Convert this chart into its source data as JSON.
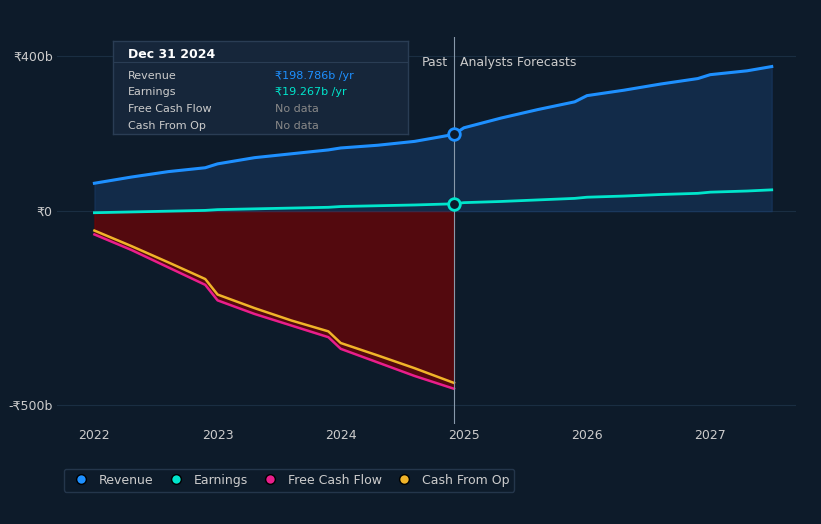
{
  "background_color": "#0d1b2a",
  "plot_bg_color": "#0d1b2a",
  "xlim": [
    2021.7,
    2027.7
  ],
  "ylim": [
    -550,
    450
  ],
  "yticks": [
    -500,
    0,
    400
  ],
  "ytick_labels": [
    "-₹500b",
    "₹0",
    "₹400b"
  ],
  "xticks": [
    2022,
    2023,
    2024,
    2025,
    2026,
    2027
  ],
  "divider_x": 2024.92,
  "past_label": "Past",
  "forecast_label": "Analysts Forecasts",
  "revenue": {
    "x": [
      2022.0,
      2022.3,
      2022.6,
      2022.9,
      2023.0,
      2023.3,
      2023.6,
      2023.9,
      2024.0,
      2024.3,
      2024.6,
      2024.92,
      2025.0,
      2025.3,
      2025.6,
      2025.9,
      2026.0,
      2026.3,
      2026.6,
      2026.9,
      2027.0,
      2027.3,
      2027.5
    ],
    "y": [
      72,
      88,
      102,
      112,
      122,
      138,
      148,
      158,
      163,
      170,
      180,
      198,
      215,
      240,
      262,
      282,
      298,
      312,
      328,
      342,
      352,
      362,
      373
    ],
    "color": "#1e90ff",
    "linewidth": 2.2
  },
  "earnings": {
    "x": [
      2022.0,
      2022.3,
      2022.6,
      2022.9,
      2023.0,
      2023.3,
      2023.6,
      2023.9,
      2024.0,
      2024.3,
      2024.6,
      2024.92,
      2025.0,
      2025.3,
      2025.6,
      2025.9,
      2026.0,
      2026.3,
      2026.6,
      2026.9,
      2027.0,
      2027.3,
      2027.5
    ],
    "y": [
      -4,
      -2,
      0,
      2,
      4,
      6,
      8,
      10,
      12,
      14,
      16,
      19,
      22,
      25,
      29,
      33,
      36,
      39,
      43,
      46,
      49,
      52,
      55
    ],
    "color": "#00e5cc",
    "linewidth": 2.0
  },
  "free_cash_flow": {
    "x": [
      2022.0,
      2022.3,
      2022.6,
      2022.9,
      2023.0,
      2023.3,
      2023.6,
      2023.9,
      2024.0,
      2024.3,
      2024.6,
      2024.92
    ],
    "y": [
      -60,
      -100,
      -145,
      -190,
      -230,
      -265,
      -295,
      -325,
      -355,
      -390,
      -425,
      -458
    ],
    "color": "#e91e8c",
    "linewidth": 1.8
  },
  "cash_from_op": {
    "x": [
      2022.0,
      2022.3,
      2022.6,
      2022.9,
      2023.0,
      2023.3,
      2023.6,
      2023.9,
      2024.0,
      2024.3,
      2024.6,
      2024.92
    ],
    "y": [
      -50,
      -90,
      -132,
      -175,
      -215,
      -250,
      -282,
      -310,
      -340,
      -372,
      -405,
      -443
    ],
    "color": "#f0b429",
    "linewidth": 1.8
  },
  "fill_color_negative": "#7a0000",
  "fill_alpha_negative": 0.65,
  "revenue_fill_color": "#1a3f6f",
  "revenue_fill_alpha": 0.45,
  "dot_color_revenue": "#1e90ff",
  "dot_color_earnings": "#00e5cc",
  "dot_size": 70,
  "tooltip": {
    "title": "Dec 31 2024",
    "rows": [
      {
        "label": "Revenue",
        "value": "₹198.786b /yr",
        "value_color": "#1e90ff"
      },
      {
        "label": "Earnings",
        "value": "₹19.267b /yr",
        "value_color": "#00e5cc"
      },
      {
        "label": "Free Cash Flow",
        "value": "No data",
        "value_color": "#888888"
      },
      {
        "label": "Cash From Op",
        "value": "No data",
        "value_color": "#888888"
      }
    ],
    "bg_color": "#16263a",
    "border_color": "#2a3d54",
    "title_color": "#ffffff"
  },
  "legend_items": [
    {
      "label": "Revenue",
      "color": "#1e90ff"
    },
    {
      "label": "Earnings",
      "color": "#00e5cc"
    },
    {
      "label": "Free Cash Flow",
      "color": "#e91e8c"
    },
    {
      "label": "Cash From Op",
      "color": "#f0b429"
    }
  ],
  "grid_color": "#1a2e42",
  "text_color": "#cccccc",
  "font_size": 9
}
